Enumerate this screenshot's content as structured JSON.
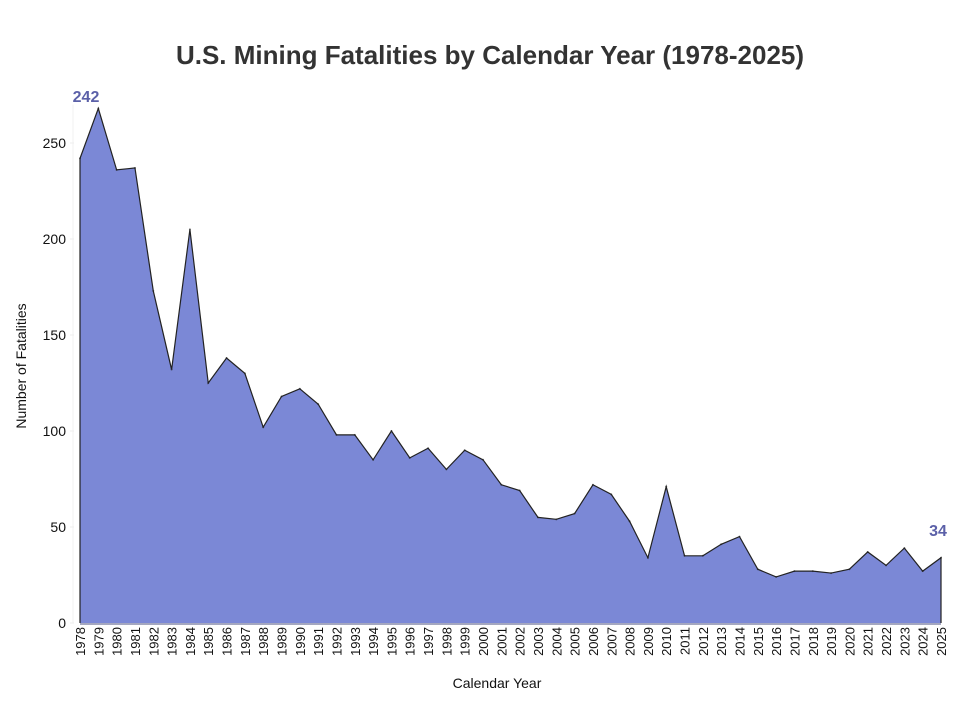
{
  "chart_data": {
    "type": "area",
    "title": "U.S. Mining Fatalities by Calendar Year (1978-2025)",
    "xlabel": "Calendar Year",
    "ylabel": "Number of Fatalities",
    "ylim": [
      0,
      270
    ],
    "yticks": [
      0,
      50,
      100,
      150,
      200,
      250
    ],
    "grid": false,
    "fill_color": "#7b88d6",
    "line_color": "#222222",
    "annotation_color": "#5b60a8",
    "x": [
      1978,
      1979,
      1980,
      1981,
      1982,
      1983,
      1984,
      1985,
      1986,
      1987,
      1988,
      1989,
      1990,
      1991,
      1992,
      1993,
      1994,
      1995,
      1996,
      1997,
      1998,
      1999,
      2000,
      2001,
      2002,
      2003,
      2004,
      2005,
      2006,
      2007,
      2008,
      2009,
      2010,
      2011,
      2012,
      2013,
      2014,
      2015,
      2016,
      2017,
      2018,
      2019,
      2020,
      2021,
      2022,
      2023,
      2024,
      2025
    ],
    "values": [
      242,
      268,
      236,
      237,
      173,
      132,
      205,
      125,
      138,
      130,
      102,
      118,
      122,
      114,
      98,
      98,
      85,
      100,
      86,
      91,
      80,
      90,
      85,
      72,
      69,
      55,
      54,
      57,
      72,
      67,
      53,
      34,
      71,
      35,
      35,
      41,
      45,
      28,
      24,
      27,
      27,
      26,
      28,
      37,
      30,
      39,
      27,
      34
    ],
    "annotations": [
      {
        "year": 1978,
        "text": "242"
      },
      {
        "year": 2025,
        "text": "34"
      }
    ]
  }
}
